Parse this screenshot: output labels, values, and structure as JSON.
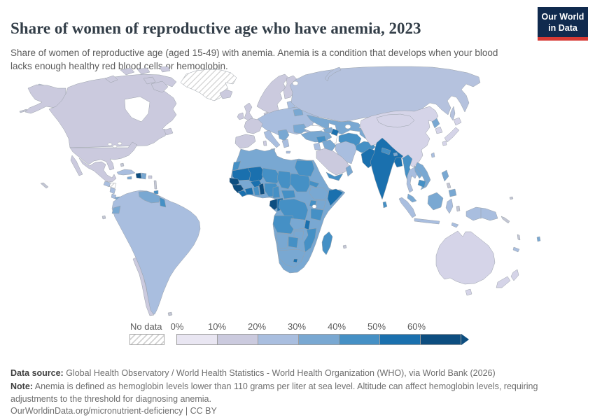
{
  "header": {
    "title": "Share of women of reproductive age who have anemia, 2023",
    "subtitle": "Share of women of reproductive age (aged 15-49) with anemia. Anemia is a condition that develops when your blood lacks enough healthy red blood cells or hemoglobin.",
    "logo": {
      "line1": "Our World",
      "line2": "in Data",
      "bg": "#102a4e",
      "accent": "#d73a34"
    }
  },
  "legend": {
    "no_data_label": "No data",
    "tick_labels": [
      "0%",
      "10%",
      "20%",
      "30%",
      "40%",
      "50%",
      "60%"
    ],
    "colors": [
      "#e9e6f2",
      "#cbcade",
      "#a9bedf",
      "#79a8d2",
      "#4590c5",
      "#1a70ae",
      "#0d4e80"
    ]
  },
  "footer": {
    "source_label": "Data source:",
    "source_text": " Global Health Observatory / World Health Statistics - World Health Organization (WHO), via World Bank (2026)",
    "note_label": "Note:",
    "note_text": " Anemia is defined as hemoglobin levels lower than 110 grams per liter at sea level. Altitude can affect hemoglobin levels, requiring adjustments to the threshold for diagnosing anemia.",
    "url": "OurWorldinData.org/micronutrient-deficiency | CC BY"
  },
  "chart_data": {
    "type": "heatmap",
    "form": "world-choropleth-map",
    "title": "Share of women of reproductive age who have anemia, 2023",
    "unit": "% of women aged 15-49 with anemia",
    "legend_position": "bottom-left",
    "bins": [
      {
        "range": "0-10%",
        "color": "#e9e6f2"
      },
      {
        "range": "10-20%",
        "color": "#cbcade"
      },
      {
        "range": "20-30%",
        "color": "#a9bedf"
      },
      {
        "range": "30-40%",
        "color": "#79a8d2"
      },
      {
        "range": "40-50%",
        "color": "#4590c5"
      },
      {
        "range": "50-60%",
        "color": "#1a70ae"
      },
      {
        "range": "60%+",
        "color": "#0d4e80"
      },
      {
        "range": "No data",
        "color": "hatched"
      }
    ],
    "regions": [
      {
        "name": "Canada",
        "bin": "10-20%"
      },
      {
        "name": "United States",
        "bin": "10-20%"
      },
      {
        "name": "Mexico",
        "bin": "10-20%"
      },
      {
        "name": "Greenland",
        "bin": "No data"
      },
      {
        "name": "Cuba",
        "bin": "20-30%"
      },
      {
        "name": "Haiti",
        "bin": "50-60%"
      },
      {
        "name": "Colombia",
        "bin": "20-30%"
      },
      {
        "name": "Venezuela",
        "bin": "30-40%"
      },
      {
        "name": "Guyana",
        "bin": "40-50%"
      },
      {
        "name": "Suriname",
        "bin": "No data"
      },
      {
        "name": "Brazil",
        "bin": "20-30%"
      },
      {
        "name": "Peru",
        "bin": "20-30%"
      },
      {
        "name": "Chile",
        "bin": "10-20%"
      },
      {
        "name": "Argentina",
        "bin": "20-30%"
      },
      {
        "name": "Western Europe",
        "bin": "10-20%"
      },
      {
        "name": "Eastern Europe",
        "bin": "20-30%"
      },
      {
        "name": "Russia",
        "bin": "20-30%"
      },
      {
        "name": "Turkey",
        "bin": "30-40%"
      },
      {
        "name": "Kazakhstan",
        "bin": "30-40%"
      },
      {
        "name": "Uzbekistan",
        "bin": "40-50%"
      },
      {
        "name": "Azerbaijan",
        "bin": "50-60%"
      },
      {
        "name": "Iran",
        "bin": "20-30%"
      },
      {
        "name": "Iraq",
        "bin": "30-40%"
      },
      {
        "name": "Saudi Arabia",
        "bin": "10-20%"
      },
      {
        "name": "Yemen",
        "bin": "40-50%"
      },
      {
        "name": "Afghanistan",
        "bin": "40-50%"
      },
      {
        "name": "Pakistan",
        "bin": "50-60%"
      },
      {
        "name": "India",
        "bin": "50-60%"
      },
      {
        "name": "Bangladesh",
        "bin": "50-60%"
      },
      {
        "name": "China",
        "bin": "10-20%"
      },
      {
        "name": "Mongolia",
        "bin": "10-20%"
      },
      {
        "name": "Japan",
        "bin": "10-20%"
      },
      {
        "name": "Myanmar",
        "bin": "40-50%"
      },
      {
        "name": "Thailand",
        "bin": "20-30%"
      },
      {
        "name": "Vietnam",
        "bin": "30-40%"
      },
      {
        "name": "Cambodia",
        "bin": "40-50%"
      },
      {
        "name": "Indonesia",
        "bin": "20-30%"
      },
      {
        "name": "Philippines",
        "bin": "30-40%"
      },
      {
        "name": "Papua New Guinea",
        "bin": "20-30%"
      },
      {
        "name": "Australia",
        "bin": "10-20%"
      },
      {
        "name": "New Zealand",
        "bin": "10-20%"
      },
      {
        "name": "Morocco",
        "bin": "30-40%"
      },
      {
        "name": "Algeria",
        "bin": "30-40%"
      },
      {
        "name": "Egypt",
        "bin": "40-50%"
      },
      {
        "name": "Mauritania",
        "bin": "50-60%"
      },
      {
        "name": "Senegal",
        "bin": "60%+"
      },
      {
        "name": "Guinea",
        "bin": "60%+"
      },
      {
        "name": "Mali",
        "bin": "50-60%"
      },
      {
        "name": "Cote d'Ivoire",
        "bin": "50-60%"
      },
      {
        "name": "Ghana",
        "bin": "40-50%"
      },
      {
        "name": "Niger",
        "bin": "40-50%"
      },
      {
        "name": "Nigeria",
        "bin": "40-50%"
      },
      {
        "name": "Chad",
        "bin": "40-50%"
      },
      {
        "name": "Sudan",
        "bin": "40-50%"
      },
      {
        "name": "Ethiopia",
        "bin": "30-40%"
      },
      {
        "name": "Somalia",
        "bin": "50-60%"
      },
      {
        "name": "Kenya",
        "bin": "30-40%"
      },
      {
        "name": "Tanzania",
        "bin": "40-50%"
      },
      {
        "name": "DR Congo",
        "bin": "40-50%"
      },
      {
        "name": "Gabon",
        "bin": "60%+"
      },
      {
        "name": "Angola",
        "bin": "40-50%"
      },
      {
        "name": "Zambia",
        "bin": "30-40%"
      },
      {
        "name": "Mozambique",
        "bin": "40-50%"
      },
      {
        "name": "South Africa",
        "bin": "30-40%"
      },
      {
        "name": "Madagascar",
        "bin": "40-50%"
      }
    ]
  }
}
